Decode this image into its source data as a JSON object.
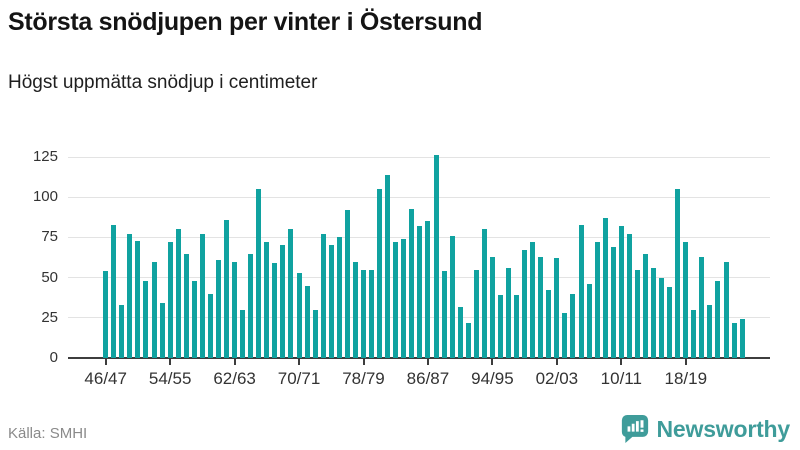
{
  "header": {
    "title": "Största snödjupen per vinter i Östersund",
    "subtitle": "Högst uppmätta snödjup i centimeter"
  },
  "footer": {
    "source": "Källa: SMHI",
    "brand": "Newsworthy"
  },
  "colors": {
    "bar": "#10a2a0",
    "brand_teal": "#3f9c9a",
    "grid": "#e3e3e3",
    "axis": "#3d3d3d",
    "tick_text": "#333333",
    "muted_text": "#8a8a8a"
  },
  "chart_data": {
    "type": "bar",
    "title": "Största snödjupen per vinter i Östersund",
    "subtitle": "Högst uppmätta snödjup i centimeter",
    "unit": "cm",
    "categories": [
      "46/47",
      "47/48",
      "48/49",
      "49/50",
      "50/51",
      "51/52",
      "52/53",
      "53/54",
      "54/55",
      "55/56",
      "56/57",
      "57/58",
      "58/59",
      "59/60",
      "60/61",
      "61/62",
      "62/63",
      "63/64",
      "64/65",
      "65/66",
      "66/67",
      "67/68",
      "68/69",
      "69/70",
      "70/71",
      "71/72",
      "72/73",
      "73/74",
      "74/75",
      "75/76",
      "76/77",
      "77/78",
      "78/79",
      "79/80",
      "80/81",
      "81/82",
      "82/83",
      "83/84",
      "84/85",
      "85/86",
      "86/87",
      "87/88",
      "88/89",
      "89/90",
      "90/91",
      "91/92",
      "92/93",
      "93/94",
      "94/95",
      "95/96",
      "96/97",
      "97/98",
      "98/99",
      "99/00",
      "00/01",
      "01/02",
      "02/03",
      "03/04",
      "04/05",
      "05/06",
      "06/07",
      "07/08",
      "08/09",
      "09/10",
      "10/11",
      "11/12",
      "12/13",
      "13/14",
      "14/15",
      "15/16",
      "16/17",
      "17/18",
      "18/19",
      "19/20",
      "20/21",
      "21/22",
      "22/23",
      "23/24",
      "24/25",
      "25/26"
    ],
    "values": [
      54,
      83,
      33,
      77,
      73,
      48,
      60,
      34,
      72,
      80,
      65,
      48,
      77,
      40,
      61,
      86,
      60,
      30,
      65,
      105,
      72,
      59,
      70,
      80,
      53,
      45,
      30,
      77,
      70,
      75,
      92,
      60,
      55,
      55,
      105,
      114,
      72,
      74,
      93,
      82,
      85,
      126,
      54,
      76,
      32,
      22,
      55,
      80,
      63,
      39,
      56,
      39,
      67,
      72,
      63,
      42,
      62,
      28,
      40,
      83,
      46,
      72,
      87,
      69,
      82,
      77,
      55,
      65,
      56,
      50,
      44,
      105,
      72,
      30,
      63,
      33,
      48,
      60,
      22,
      24
    ],
    "x_tick_labels": [
      "46/47",
      "54/55",
      "62/63",
      "70/71",
      "78/79",
      "86/87",
      "94/95",
      "02/03",
      "10/11",
      "18/19"
    ],
    "x_tick_every": 8,
    "y_ticks": [
      0,
      25,
      50,
      75,
      100,
      125
    ],
    "ylim": [
      0,
      130
    ],
    "grid": "horizontal",
    "legend": "none",
    "bar_color": "#10a2a0"
  }
}
